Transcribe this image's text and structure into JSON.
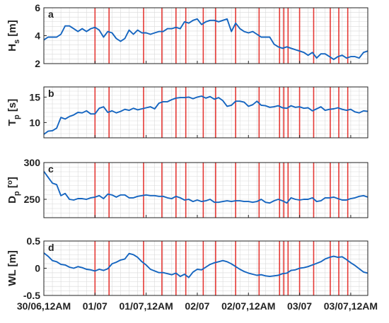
{
  "figure": {
    "x_tick_labels": [
      "30/06,12AM",
      "01/07",
      "01/07,12AM",
      "02/07",
      "02/07,12AM",
      "03/07",
      "03/07,12AM"
    ],
    "x_tick_hours": [
      0,
      12,
      24,
      36,
      48,
      60,
      72
    ]
  },
  "colors": {
    "series": "#1565c0",
    "event_lines": "#e53935",
    "grid": "#d9d9d9",
    "axes": "#222222"
  },
  "event_lines_hours": [
    12.0,
    15.3,
    23.4,
    27.7,
    31.0,
    33.3,
    37.4,
    40.3,
    45.0,
    50.5,
    55.3,
    56.3,
    57.3,
    60.0,
    63.3,
    67.2,
    69.2,
    71.3
  ],
  "chart_data": [
    {
      "type": "line",
      "panel_label": "a",
      "ylabel_main": "H",
      "ylabel_sub": "s",
      "ylabel_tail": " [m]",
      "ylim": [
        2,
        6
      ],
      "yticks": [
        2,
        4,
        6
      ],
      "grid": true,
      "x_hours": [
        0,
        1,
        2,
        3,
        4,
        5,
        6,
        7,
        8,
        9,
        10,
        11,
        12,
        13,
        14,
        15,
        16,
        17,
        18,
        19,
        20,
        21,
        22,
        23,
        24,
        25,
        26,
        27,
        28,
        29,
        30,
        31,
        32,
        33,
        34,
        35,
        36,
        37,
        38,
        39,
        40,
        41,
        42,
        43,
        44,
        45,
        46,
        47,
        48,
        49,
        50,
        51,
        52,
        53,
        54,
        55,
        56,
        57,
        58,
        59,
        60,
        61,
        62,
        63,
        64,
        65,
        66,
        67,
        68,
        69,
        70,
        71,
        72,
        73,
        74,
        75,
        76
      ],
      "values": [
        3.7,
        3.9,
        3.9,
        3.9,
        4.1,
        4.7,
        4.7,
        4.5,
        4.3,
        4.5,
        4.3,
        4.5,
        4.6,
        4.4,
        3.9,
        4.3,
        4.2,
        3.8,
        3.6,
        3.8,
        4.4,
        4.1,
        4.4,
        4.2,
        4.2,
        4.1,
        4.2,
        4.3,
        4.3,
        4.5,
        4.5,
        4.6,
        4.5,
        5.0,
        4.9,
        5.1,
        5.2,
        4.8,
        5.0,
        5.1,
        5.1,
        5.0,
        5.1,
        5.2,
        4.3,
        4.9,
        4.5,
        4.3,
        4.2,
        4.3,
        4.1,
        3.9,
        3.9,
        3.9,
        3.4,
        3.2,
        3.1,
        3.2,
        3.1,
        3.0,
        2.9,
        2.8,
        2.6,
        2.8,
        2.4,
        2.7,
        2.7,
        2.5,
        2.3,
        2.5,
        2.6,
        2.4,
        2.5,
        2.5,
        2.4,
        2.8,
        2.9
      ]
    },
    {
      "type": "line",
      "panel_label": "b",
      "ylabel_main": "T",
      "ylabel_sub": "p",
      "ylabel_tail": " [s]",
      "ylim": [
        7,
        17
      ],
      "yticks": [
        10,
        15
      ],
      "grid": true,
      "x_hours": [
        0,
        1,
        2,
        3,
        4,
        5,
        6,
        7,
        8,
        9,
        10,
        11,
        12,
        13,
        14,
        15,
        16,
        17,
        18,
        19,
        20,
        21,
        22,
        23,
        24,
        25,
        26,
        27,
        28,
        29,
        30,
        31,
        32,
        33,
        34,
        35,
        36,
        37,
        38,
        39,
        40,
        41,
        42,
        43,
        44,
        45,
        46,
        47,
        48,
        49,
        50,
        51,
        52,
        53,
        54,
        55,
        56,
        57,
        58,
        59,
        60,
        61,
        62,
        63,
        64,
        65,
        66,
        67,
        68,
        69,
        70,
        71,
        72,
        73,
        74,
        75,
        76
      ],
      "values": [
        7.7,
        8.3,
        8.4,
        8.9,
        11.0,
        10.7,
        11.2,
        11.5,
        12.0,
        11.9,
        12.3,
        11.7,
        11.7,
        12.8,
        13.1,
        12.0,
        12.3,
        11.9,
        12.2,
        12.6,
        12.4,
        12.8,
        12.5,
        12.7,
        12.9,
        13.1,
        12.7,
        13.8,
        14.1,
        14.1,
        14.5,
        14.8,
        14.9,
        14.9,
        15.0,
        14.7,
        15.0,
        15.2,
        14.8,
        15.1,
        14.6,
        14.9,
        14.3,
        13.2,
        13.4,
        14.2,
        14.2,
        14.0,
        13.2,
        13.5,
        14.2,
        13.4,
        13.3,
        13.0,
        13.1,
        13.3,
        12.9,
        12.8,
        13.3,
        13.0,
        13.1,
        12.8,
        12.9,
        12.3,
        12.7,
        13.1,
        12.4,
        12.6,
        12.7,
        12.9,
        12.6,
        12.4,
        12.6,
        12.1,
        11.9,
        12.3,
        12.2
      ]
    },
    {
      "type": "line",
      "panel_label": "c",
      "ylabel_main": "D",
      "ylabel_sub": "p",
      "ylabel_tail": " [",
      "ylabel_sup": "o",
      "ylabel_close": "]",
      "ylim": [
        225,
        300
      ],
      "yticks": [
        250,
        300
      ],
      "grid": true,
      "x_hours": [
        0,
        1,
        2,
        3,
        4,
        5,
        6,
        7,
        8,
        9,
        10,
        11,
        12,
        13,
        14,
        15,
        16,
        17,
        18,
        19,
        20,
        21,
        22,
        23,
        24,
        25,
        26,
        27,
        28,
        29,
        30,
        31,
        32,
        33,
        34,
        35,
        36,
        37,
        38,
        39,
        40,
        41,
        42,
        43,
        44,
        45,
        46,
        47,
        48,
        49,
        50,
        51,
        52,
        53,
        54,
        55,
        56,
        57,
        58,
        59,
        60,
        61,
        62,
        63,
        64,
        65,
        66,
        67,
        68,
        69,
        70,
        71,
        72,
        73,
        74,
        75,
        76
      ],
      "values": [
        288,
        280,
        272,
        270,
        255,
        258,
        250,
        249,
        251,
        251,
        250,
        252,
        253,
        255,
        251,
        257,
        256,
        253,
        256,
        256,
        252,
        252,
        254,
        255,
        256,
        255,
        255,
        254,
        254,
        252,
        251,
        254,
        252,
        249,
        250,
        247,
        249,
        247,
        248,
        250,
        246,
        246,
        247,
        248,
        247,
        248,
        248,
        247,
        247,
        246,
        247,
        250,
        246,
        245,
        248,
        250,
        248,
        245,
        252,
        250,
        249,
        250,
        250,
        252,
        247,
        248,
        252,
        252,
        253,
        251,
        249,
        249,
        251,
        252,
        254,
        255,
        253
      ]
    },
    {
      "type": "line",
      "panel_label": "d",
      "ylabel_main": "WL [m]",
      "ylim": [
        -0.5,
        0.5
      ],
      "yticks": [
        -0.5,
        0,
        0.5
      ],
      "ytick_labels": [
        "-0.5",
        "0",
        "0.5"
      ],
      "grid": true,
      "x_hours": [
        0,
        1,
        2,
        3,
        4,
        5,
        6,
        7,
        8,
        9,
        10,
        11,
        12,
        13,
        14,
        15,
        16,
        17,
        18,
        19,
        20,
        21,
        22,
        23,
        24,
        25,
        26,
        27,
        28,
        29,
        30,
        31,
        32,
        33,
        34,
        35,
        36,
        37,
        38,
        39,
        40,
        41,
        42,
        43,
        44,
        45,
        46,
        47,
        48,
        49,
        50,
        51,
        52,
        53,
        54,
        55,
        56,
        57,
        58,
        59,
        60,
        61,
        62,
        63,
        64,
        65,
        66,
        67,
        68,
        69,
        70,
        71,
        72,
        73,
        74,
        75,
        76
      ],
      "values": [
        0.28,
        0.22,
        0.14,
        0.12,
        0.07,
        0.06,
        0.02,
        0.0,
        0.03,
        0.01,
        -0.02,
        -0.03,
        -0.05,
        -0.02,
        -0.04,
        -0.01,
        0.08,
        0.11,
        0.15,
        0.17,
        0.27,
        0.25,
        0.2,
        0.12,
        0.06,
        -0.02,
        -0.05,
        -0.08,
        -0.08,
        -0.1,
        -0.12,
        -0.09,
        -0.15,
        -0.11,
        -0.17,
        -0.07,
        -0.02,
        -0.03,
        0.02,
        0.07,
        0.1,
        0.12,
        0.14,
        0.12,
        0.08,
        0.03,
        -0.02,
        -0.06,
        -0.09,
        -0.11,
        -0.13,
        -0.12,
        -0.14,
        -0.15,
        -0.14,
        -0.13,
        -0.1,
        -0.09,
        -0.04,
        -0.03,
        0.0,
        0.01,
        0.03,
        0.06,
        0.09,
        0.12,
        0.17,
        0.2,
        0.22,
        0.2,
        0.21,
        0.16,
        0.1,
        0.05,
        -0.01,
        -0.07,
        -0.09
      ]
    }
  ]
}
